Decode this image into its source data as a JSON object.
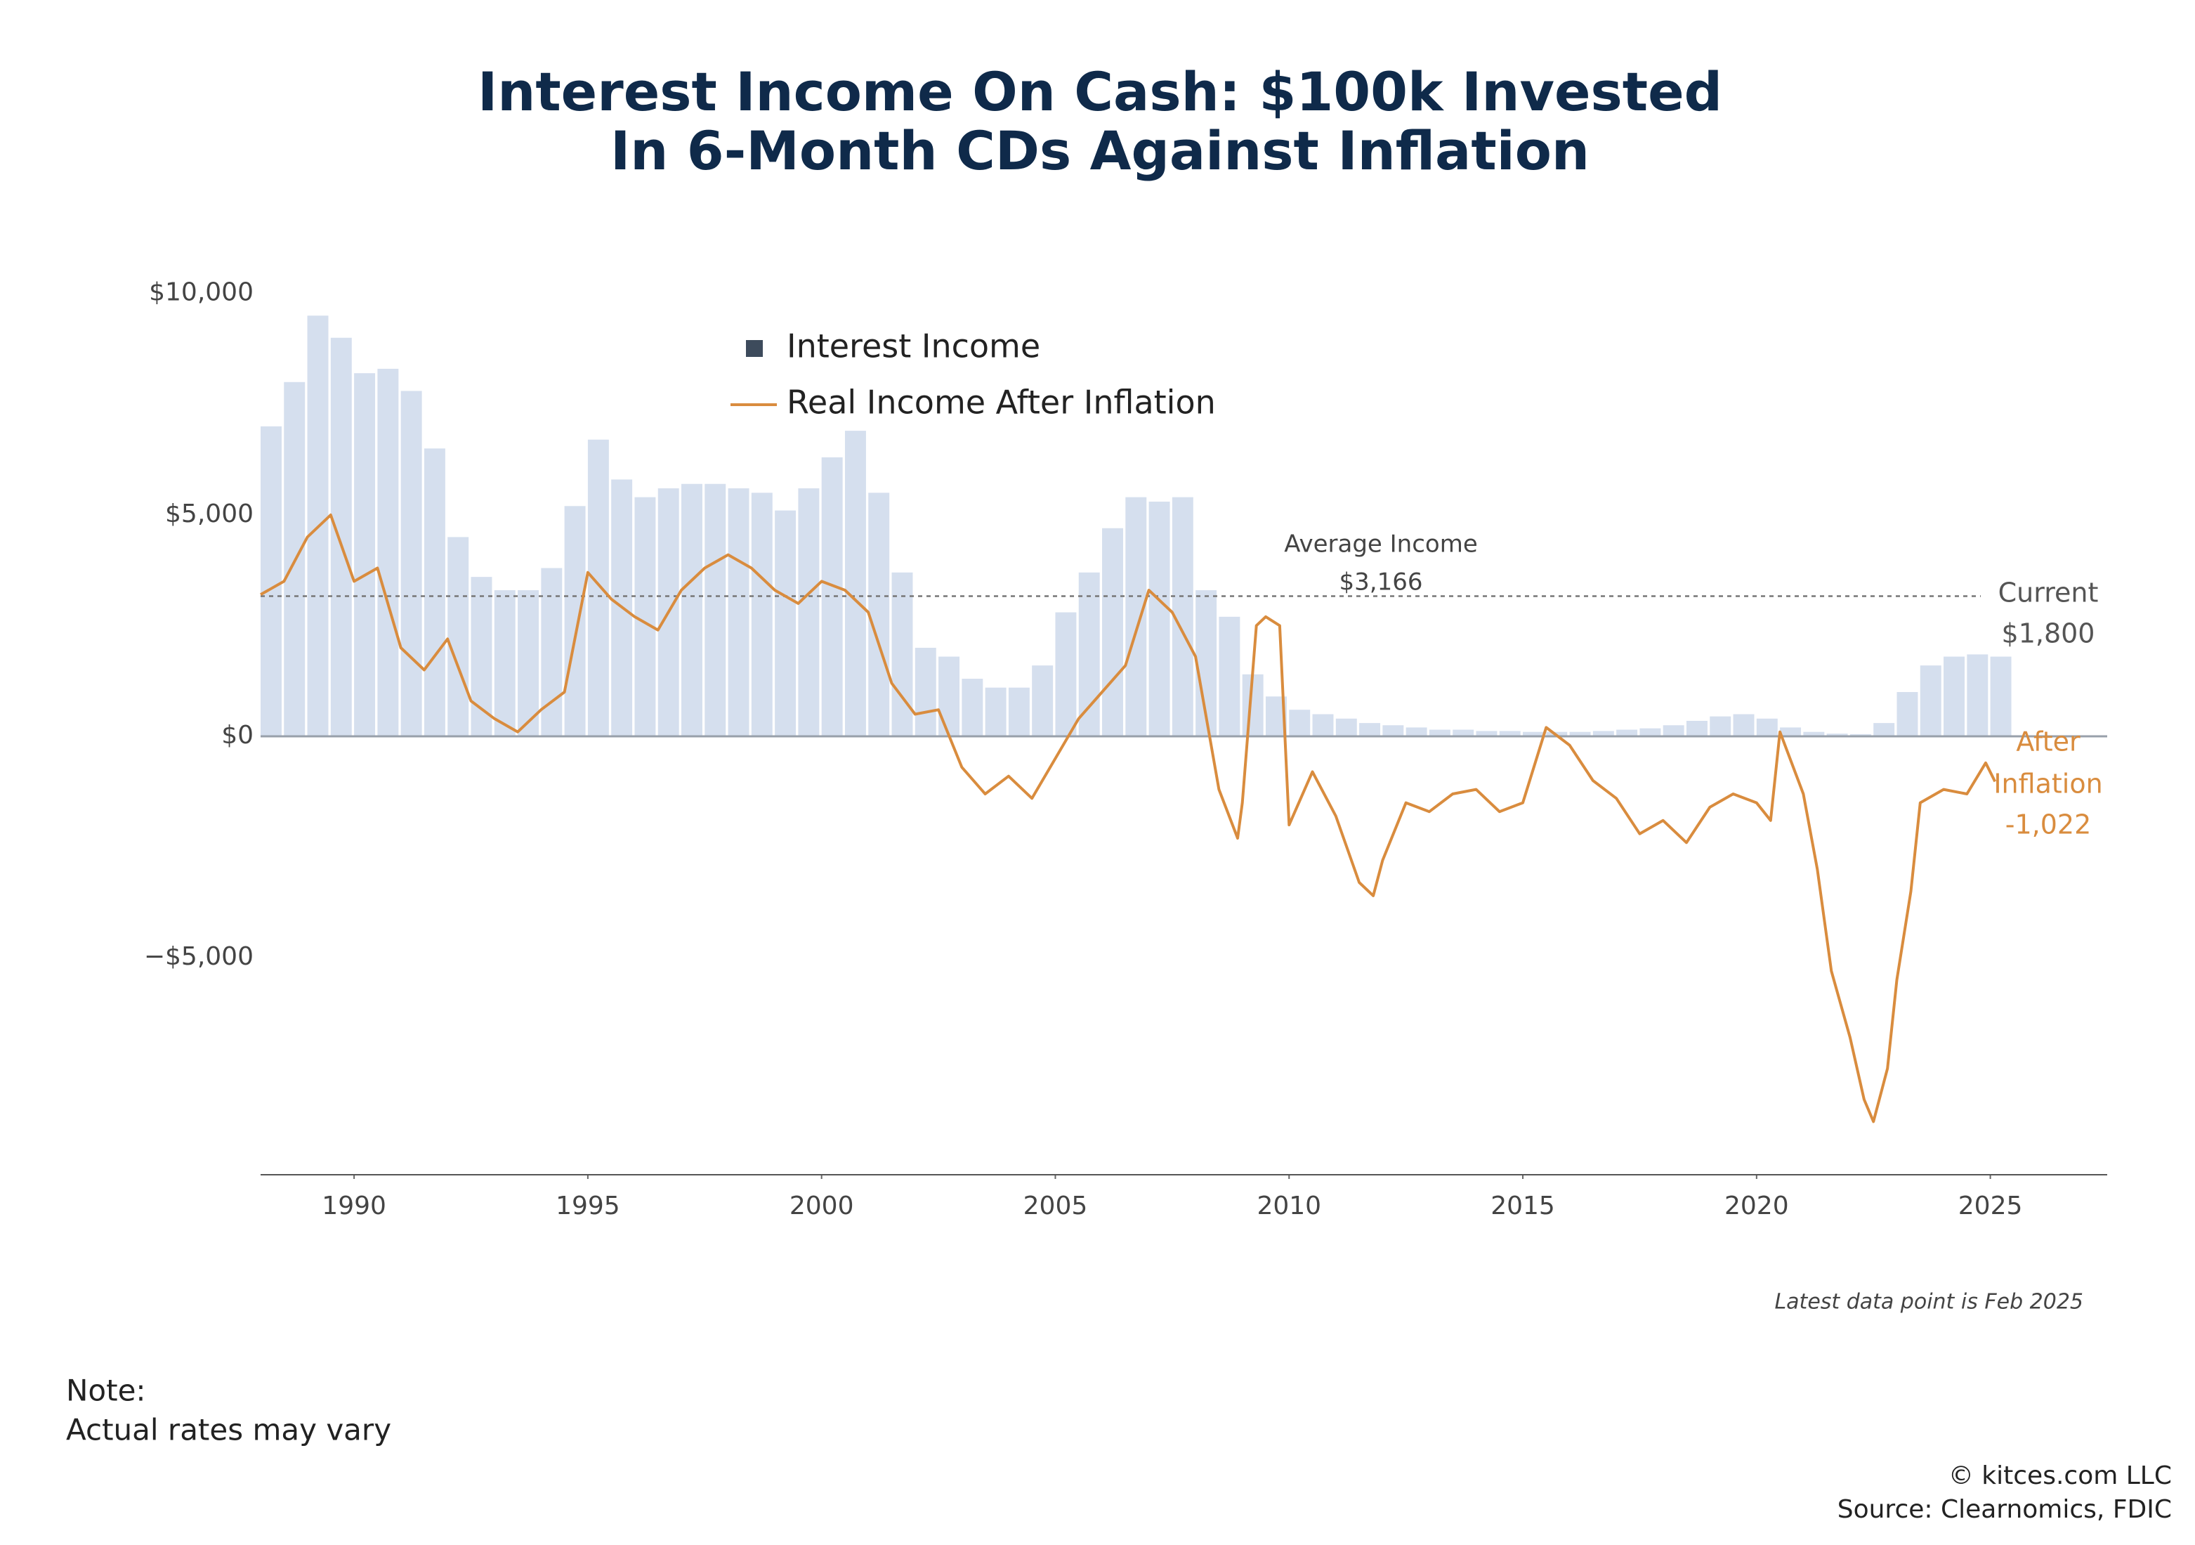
{
  "chart_data": {
    "type": "bar_line",
    "title_lines": [
      "Interest Income On Cash: $100k Invested",
      "In 6-Month CDs Against Inflation"
    ],
    "xlim": [
      1988,
      2027.5
    ],
    "ylim": [
      -9900,
      10900
    ],
    "xticks": [
      1990,
      1995,
      2000,
      2005,
      2010,
      2015,
      2020,
      2025
    ],
    "yticks": [
      {
        "value": -5000,
        "label": "−$5,000"
      },
      {
        "value": 0,
        "label": "$0"
      },
      {
        "value": 5000,
        "label": "$5,000"
      },
      {
        "value": 10000,
        "label": "$10,000"
      }
    ],
    "legend_position": "upper center",
    "series": [
      {
        "name": "Interest Income",
        "kind": "bar",
        "color": "#d5dfee",
        "legend_color": "#3d4b5c",
        "x": [
          1988,
          1988.5,
          1989,
          1989.5,
          1990,
          1990.5,
          1991,
          1991.5,
          1992,
          1992.5,
          1993,
          1993.5,
          1994,
          1994.5,
          1995,
          1995.5,
          1996,
          1996.5,
          1997,
          1997.5,
          1998,
          1998.5,
          1999,
          1999.5,
          2000,
          2000.5,
          2001,
          2001.5,
          2002,
          2002.5,
          2003,
          2003.5,
          2004,
          2004.5,
          2005,
          2005.5,
          2006,
          2006.5,
          2007,
          2007.5,
          2008,
          2008.5,
          2009,
          2009.5,
          2010,
          2010.5,
          2011,
          2011.5,
          2012,
          2012.5,
          2013,
          2013.5,
          2014,
          2014.5,
          2015,
          2015.5,
          2016,
          2016.5,
          2017,
          2017.5,
          2018,
          2018.5,
          2019,
          2019.5,
          2020,
          2020.5,
          2021,
          2021.5,
          2022,
          2022.5,
          2023,
          2023.5,
          2024,
          2024.5,
          2025
        ],
        "values": [
          7000,
          8000,
          9500,
          9000,
          8200,
          8300,
          7800,
          6500,
          4500,
          3600,
          3300,
          3300,
          3800,
          5200,
          6700,
          5800,
          5400,
          5600,
          5700,
          5700,
          5600,
          5500,
          5100,
          5600,
          6300,
          6900,
          5500,
          3700,
          2000,
          1800,
          1300,
          1100,
          1100,
          1600,
          2800,
          3700,
          4700,
          5400,
          5300,
          5400,
          3300,
          2700,
          1400,
          900,
          600,
          500,
          400,
          300,
          250,
          200,
          150,
          150,
          120,
          120,
          100,
          100,
          100,
          120,
          150,
          180,
          250,
          350,
          450,
          500,
          400,
          200,
          100,
          60,
          50,
          300,
          1000,
          1600,
          1800,
          1850,
          1800
        ]
      },
      {
        "name": "Real Income After Inflation",
        "kind": "line",
        "color": "#d98c3e",
        "x": [
          1988,
          1988.5,
          1989,
          1989.5,
          1990,
          1990.5,
          1991,
          1991.5,
          1992,
          1992.5,
          1993,
          1993.5,
          1994,
          1994.5,
          1995,
          1995.5,
          1996,
          1996.5,
          1997,
          1997.5,
          1998,
          1998.5,
          1999,
          1999.5,
          2000,
          2000.5,
          2001,
          2001.5,
          2002,
          2002.5,
          2003,
          2003.5,
          2004,
          2004.5,
          2005,
          2005.5,
          2006,
          2006.5,
          2007,
          2007.5,
          2008,
          2008.5,
          2008.9,
          2009,
          2009.3,
          2009.5,
          2009.8,
          2010,
          2010.5,
          2011,
          2011.5,
          2011.8,
          2012,
          2012.5,
          2013,
          2013.5,
          2014,
          2014.5,
          2015,
          2015.5,
          2016,
          2016.5,
          2017,
          2017.5,
          2018,
          2018.5,
          2019,
          2019.5,
          2020,
          2020.3,
          2020.5,
          2021,
          2021.3,
          2021.6,
          2022,
          2022.3,
          2022.5,
          2022.8,
          2023,
          2023.3,
          2023.5,
          2024,
          2024.5,
          2024.9,
          2025.1
        ],
        "values": [
          3200,
          3500,
          4500,
          5000,
          3500,
          3800,
          2000,
          1500,
          2200,
          800,
          400,
          100,
          600,
          1000,
          3700,
          3100,
          2700,
          2400,
          3300,
          3800,
          4100,
          3800,
          3300,
          3000,
          3500,
          3300,
          2800,
          1200,
          500,
          600,
          -700,
          -1300,
          -900,
          -1400,
          -500,
          400,
          1000,
          1600,
          3300,
          2800,
          1800,
          -1200,
          -2300,
          -1500,
          2500,
          2700,
          2500,
          -2000,
          -800,
          -1800,
          -3300,
          -3600,
          -2800,
          -1500,
          -1700,
          -1300,
          -1200,
          -1700,
          -1500,
          200,
          -200,
          -1000,
          -1400,
          -2200,
          -1900,
          -2400,
          -1600,
          -1300,
          -1500,
          -1900,
          100,
          -1300,
          -3000,
          -5300,
          -6800,
          -8200,
          -8700,
          -7500,
          -5500,
          -3500,
          -1500,
          -1200,
          -1300,
          -600,
          -1022
        ]
      }
    ],
    "average_line": {
      "lines": [
        "Average Income"
      ],
      "value": 3166,
      "value_label": "$3,166"
    },
    "current_label": {
      "text": "Current",
      "value": 1800,
      "value_label": "$1,800"
    },
    "after_inflation_label": {
      "lines": [
        "After",
        "Inflation"
      ],
      "value": -1022,
      "value_label": "-1,022"
    },
    "data_note": "Latest data point is Feb 2025",
    "note_lines": [
      "Note:",
      "Actual rates may vary"
    ],
    "footer_lines": [
      "© kitces.com LLC",
      "Source: Clearnomics, FDIC"
    ]
  }
}
